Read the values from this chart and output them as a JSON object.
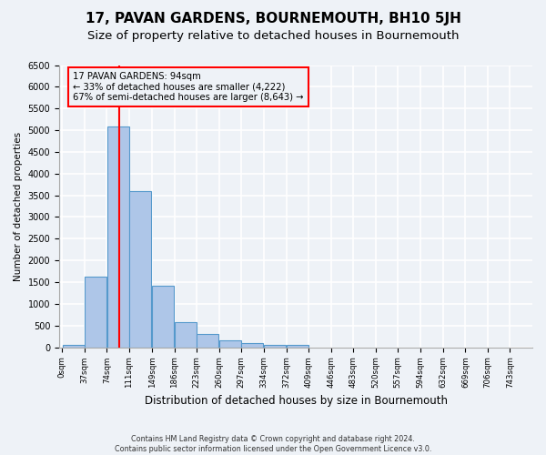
{
  "title": "17, PAVAN GARDENS, BOURNEMOUTH, BH10 5JH",
  "subtitle": "Size of property relative to detached houses in Bournemouth",
  "xlabel": "Distribution of detached houses by size in Bournemouth",
  "ylabel": "Number of detached properties",
  "bin_labels": [
    "0sqm",
    "37sqm",
    "74sqm",
    "111sqm",
    "149sqm",
    "186sqm",
    "223sqm",
    "260sqm",
    "297sqm",
    "334sqm",
    "372sqm",
    "409sqm",
    "446sqm",
    "483sqm",
    "520sqm",
    "557sqm",
    "594sqm",
    "632sqm",
    "669sqm",
    "706sqm",
    "743sqm"
  ],
  "bin_edges": [
    0,
    37,
    74,
    111,
    149,
    186,
    223,
    260,
    297,
    334,
    372,
    409,
    446,
    483,
    520,
    557,
    594,
    632,
    669,
    706,
    743
  ],
  "bar_heights": [
    50,
    1620,
    5080,
    3600,
    1420,
    580,
    300,
    150,
    100,
    50,
    50,
    0,
    0,
    0,
    0,
    0,
    0,
    0,
    0,
    0
  ],
  "bar_color": "#aec6e8",
  "bar_edge_color": "#5599cc",
  "vline_x": 94,
  "vline_color": "red",
  "annotation_title": "17 PAVAN GARDENS: 94sqm",
  "annotation_line1": "← 33% of detached houses are smaller (4,222)",
  "annotation_line2": "67% of semi-detached houses are larger (8,643) →",
  "annotation_box_color": "red",
  "ylim": [
    0,
    6500
  ],
  "yticks": [
    0,
    500,
    1000,
    1500,
    2000,
    2500,
    3000,
    3500,
    4000,
    4500,
    5000,
    5500,
    6000,
    6500
  ],
  "footer_line1": "Contains HM Land Registry data © Crown copyright and database right 2024.",
  "footer_line2": "Contains public sector information licensed under the Open Government Licence v3.0.",
  "background_color": "#eef2f7",
  "grid_color": "#ffffff",
  "title_fontsize": 11,
  "subtitle_fontsize": 9.5
}
